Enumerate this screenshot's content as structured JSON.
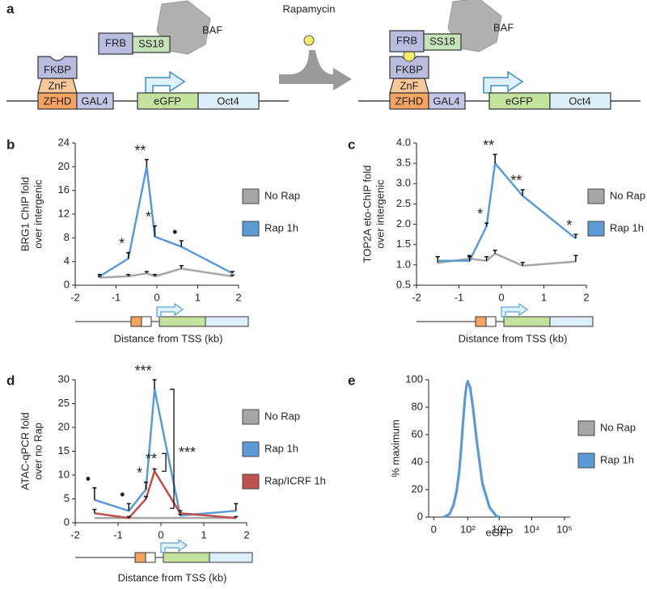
{
  "panel_labels": [
    "a",
    "b",
    "c",
    "d",
    "e"
  ],
  "diagram": {
    "left": {
      "fkbp": "FKBP",
      "znf": "ZnF",
      "zfhd": "ZFHD",
      "gal4": "GAL4",
      "frb": "FRB",
      "ss18": "SS18",
      "baf": "BAF",
      "egfp": "eGFP",
      "oct4": "Oct4"
    },
    "drug": "Rapamycin",
    "right": {
      "fkbp": "FKBP",
      "znf": "ZnF",
      "zfhd": "ZFHD",
      "gal4": "GAL4",
      "frb": "FRB",
      "ss18": "SS18",
      "baf": "BAF",
      "egfp": "eGFP",
      "oct4": "Oct4"
    }
  },
  "chart_data": [
    {
      "type": "line",
      "ylabel": [
        "BRG1 ChIP fold",
        "over intergenic"
      ],
      "xlabel": "Distance from TSS (kb)",
      "x": [
        -1.4,
        -0.7,
        -0.25,
        -0.05,
        0.6,
        1.85
      ],
      "xlim": [
        -2,
        2
      ],
      "xticks": [
        -2,
        -1,
        0,
        1,
        2
      ],
      "ylim": [
        0,
        24
      ],
      "yticks": [
        0,
        4,
        8,
        12,
        16,
        20,
        24
      ],
      "legend": "right",
      "series": [
        {
          "name": "No Rap",
          "color": "#a6a6a6",
          "values": [
            1.3,
            1.5,
            2,
            1.5,
            2.8,
            1.5
          ],
          "errors": [
            0.2,
            0.3,
            0.3,
            0.3,
            0.5,
            0.2
          ]
        },
        {
          "name": "Rap 1h",
          "color": "#5b9bd5",
          "values": [
            1.5,
            4.5,
            20,
            8.2,
            6.5,
            2
          ],
          "errors": [
            0.3,
            1,
            1.2,
            1.8,
            1,
            0.3
          ],
          "significance": [
            null,
            "*",
            "**",
            "*",
            "•",
            null
          ]
        }
      ]
    },
    {
      "type": "line",
      "ylabel": [
        "TOP2A eto-ChIP fold",
        "over intergenic"
      ],
      "xlabel": "Distance from TSS (kb)",
      "x": [
        -1.5,
        -0.75,
        -0.35,
        -0.15,
        0.5,
        1.75
      ],
      "xlim": [
        -2,
        2
      ],
      "xticks": [
        -2,
        -1,
        0,
        1,
        2
      ],
      "ylim": [
        0.5,
        4
      ],
      "yticks": [
        0.5,
        {
          "value": 1,
          "label": "1.0"
        },
        1.5,
        {
          "value": 2,
          "label": "2.0"
        },
        2.5,
        {
          "value": 3,
          "label": "3.0"
        },
        3.5,
        {
          "value": 4,
          "label": "4.0"
        }
      ],
      "legend": "right",
      "series": [
        {
          "name": "No Rap",
          "color": "#a6a6a6",
          "values": [
            1.05,
            1.15,
            1.1,
            1.28,
            0.98,
            1.08
          ],
          "errors": [
            0.15,
            0.08,
            0.1,
            0.08,
            0.08,
            0.15
          ]
        },
        {
          "name": "Rap 1h",
          "color": "#5b9bd5",
          "values": [
            1.1,
            1.1,
            1.95,
            3.5,
            2.7,
            1.65
          ],
          "errors": [
            0.1,
            0.1,
            0.08,
            0.22,
            0.15,
            0.1
          ],
          "significance": [
            null,
            null,
            "*",
            "**",
            "**",
            "*"
          ]
        }
      ]
    },
    {
      "type": "line",
      "ylabel": [
        "ATAC-qPCR fold",
        "over no Rap"
      ],
      "xlabel": "Distance from TSS (kb)",
      "x": [
        -1.55,
        -0.75,
        -0.35,
        -0.15,
        0.45,
        1.75
      ],
      "xlim": [
        -2,
        2
      ],
      "xticks": [
        -2,
        -1,
        0,
        1,
        2
      ],
      "ylim": [
        0,
        30
      ],
      "yticks": [
        0,
        5,
        10,
        15,
        20,
        25,
        30
      ],
      "legend": "right",
      "bracket_labels": [
        "***",
        "**"
      ],
      "series": [
        {
          "name": "No Rap",
          "color": "#a6a6a6",
          "values": [
            1,
            1,
            1,
            1,
            1,
            1
          ]
        },
        {
          "name": "Rap 1h",
          "color": "#5b9bd5",
          "values": [
            4.8,
            2.5,
            7,
            28,
            1.5,
            2.5
          ],
          "errors": [
            2.5,
            1.5,
            1.5,
            2,
            0.3,
            1.5
          ],
          "significance": [
            "•",
            "•",
            "*",
            "***",
            null,
            null
          ]
        },
        {
          "name": "Rap/ICRF 1h",
          "color": "#c0504d",
          "values": [
            2,
            1,
            5,
            10.8,
            2,
            1
          ],
          "errors": [
            0.8,
            0.3,
            0.5,
            0.5,
            0.5,
            0.3
          ]
        }
      ]
    },
    {
      "type": "line",
      "ylabel": [
        "% maximum"
      ],
      "xlabel": "eGFP",
      "xscale": "biexponential",
      "x": [
        10,
        20,
        30,
        40,
        50,
        60,
        70,
        80,
        90,
        100,
        120,
        150,
        200,
        300,
        500,
        800,
        1000
      ],
      "xlim": [
        -3,
        150000
      ],
      "xticks": [
        0,
        {
          "value": 100,
          "label": "10²"
        },
        {
          "value": 1000,
          "label": "10³"
        },
        {
          "value": 10000,
          "label": "10⁴"
        },
        {
          "value": 100000,
          "label": "10⁵"
        }
      ],
      "ylim": [
        0,
        100
      ],
      "yticks": [
        0,
        20,
        40,
        60,
        80,
        100
      ],
      "legend": "right",
      "series": [
        {
          "name": "No Rap",
          "color": "#a6a6a6",
          "values": [
            0,
            2,
            8,
            18,
            32,
            50,
            70,
            85,
            95,
            98,
            95,
            80,
            55,
            25,
            7,
            1,
            0
          ]
        },
        {
          "name": "Rap 1h",
          "color": "#5b9bd5",
          "values": [
            0,
            2,
            9,
            19,
            33,
            52,
            71,
            86,
            96,
            99,
            94,
            79,
            54,
            24,
            7,
            1,
            0
          ]
        }
      ]
    }
  ]
}
